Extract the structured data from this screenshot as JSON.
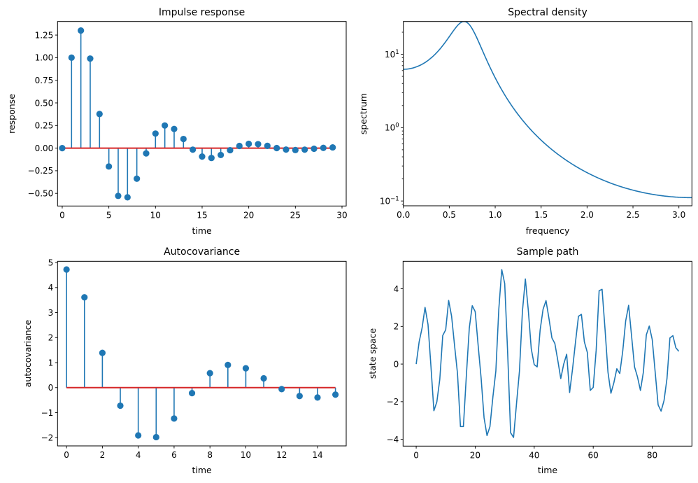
{
  "figure": {
    "background": "#ffffff",
    "series_color": "#1f77b4",
    "baseline_color": "#d62728"
  },
  "chart_data": [
    {
      "id": "impulse",
      "type": "stem",
      "title": "Impulse response",
      "xlabel": "time",
      "ylabel": "response",
      "xlim": [
        -0.5,
        30.45
      ],
      "ylim": [
        -0.64,
        1.4
      ],
      "xticks": [
        0,
        5,
        10,
        15,
        20,
        25,
        30
      ],
      "xtick_labels": [
        "0",
        "5",
        "10",
        "15",
        "20",
        "25",
        "30"
      ],
      "yticks": [
        -0.5,
        -0.25,
        0.0,
        0.25,
        0.5,
        0.75,
        1.0,
        1.25
      ],
      "ytick_labels": [
        "−0.50",
        "−0.25",
        "0.00",
        "0.25",
        "0.50",
        "0.75",
        "1.00",
        "1.25"
      ],
      "x": [
        0,
        1,
        2,
        3,
        4,
        5,
        6,
        7,
        8,
        9,
        10,
        11,
        12,
        13,
        14,
        15,
        16,
        17,
        18,
        19,
        20,
        21,
        22,
        23,
        24,
        25,
        26,
        27,
        28,
        29
      ],
      "values": [
        0.0,
        1.0,
        1.3,
        0.99,
        0.377,
        -0.203,
        -0.528,
        -0.544,
        -0.338,
        -0.058,
        0.161,
        0.25,
        0.212,
        0.101,
        -0.017,
        -0.093,
        -0.109,
        -0.076,
        -0.023,
        0.024,
        0.047,
        0.044,
        0.025,
        0.001,
        -0.016,
        -0.021,
        -0.017,
        -0.007,
        0.003,
        0.008
      ],
      "baseline": 0,
      "grid": false
    },
    {
      "id": "spectral",
      "type": "line",
      "title": "Spectral density",
      "xlabel": "frequency",
      "ylabel": "spectrum",
      "yscale": "log",
      "xlim": [
        0,
        3.1416
      ],
      "ylim": [
        0.086,
        28.0
      ],
      "xticks": [
        0,
        0.5,
        1.0,
        1.5,
        2.0,
        2.5,
        3.0
      ],
      "xtick_labels": [
        "0.0",
        "0.5",
        "1.0",
        "1.5",
        "2.0",
        "2.5",
        "3.0"
      ],
      "yticks": [
        0.1,
        1,
        10
      ],
      "ytick_labels": [
        {
          "base": "10",
          "exp": "−1"
        },
        {
          "base": "10",
          "exp": "0"
        },
        {
          "base": "10",
          "exp": "1"
        }
      ],
      "ar_coefficients": [
        1.3,
        -0.7
      ],
      "sigma": 1.0,
      "samples": {
        "x": [
          0.0,
          0.2,
          0.4,
          0.5,
          0.6,
          0.66,
          0.7,
          0.8,
          0.9,
          1.0,
          1.2,
          1.5,
          2.0,
          2.5,
          3.1416
        ],
        "y": [
          6.25,
          7.2,
          11.5,
          16.3,
          25.0,
          27.9,
          26.5,
          14.5,
          7.4,
          4.2,
          1.75,
          0.62,
          0.24,
          0.14,
          0.111
        ]
      },
      "grid": false
    },
    {
      "id": "autocov",
      "type": "stem",
      "title": "Autocovariance",
      "xlabel": "time",
      "ylabel": "autocovariance",
      "xlim": [
        -0.5,
        15.6
      ],
      "ylim": [
        -2.33,
        5.05
      ],
      "xticks": [
        0,
        2,
        4,
        6,
        8,
        10,
        12,
        14
      ],
      "xtick_labels": [
        "0",
        "2",
        "4",
        "6",
        "8",
        "10",
        "12",
        "14"
      ],
      "yticks": [
        -2,
        -1,
        0,
        1,
        2,
        3,
        4,
        5
      ],
      "ytick_labels": [
        "−2",
        "−1",
        "0",
        "1",
        "2",
        "3",
        "4",
        "5"
      ],
      "x": [
        0,
        1,
        2,
        3,
        4,
        5,
        6,
        7,
        8,
        9,
        10,
        11,
        12,
        13,
        14,
        15
      ],
      "values": [
        4.722,
        3.611,
        1.389,
        -0.722,
        -1.911,
        -1.979,
        -1.235,
        -0.22,
        0.578,
        0.906,
        0.773,
        0.371,
        -0.059,
        -0.336,
        -0.396,
        -0.279
      ],
      "baseline": 0,
      "grid": false
    },
    {
      "id": "sample",
      "type": "line",
      "title": "Sample path",
      "xlabel": "time",
      "ylabel": "state space",
      "xlim": [
        -4.45,
        93.45
      ],
      "ylim": [
        -4.36,
        5.46
      ],
      "xticks": [
        0,
        20,
        40,
        60,
        80
      ],
      "xtick_labels": [
        "0",
        "20",
        "40",
        "60",
        "80"
      ],
      "yticks": [
        -4,
        -2,
        0,
        2,
        4
      ],
      "ytick_labels": [
        "−4",
        "−2",
        "0",
        "2",
        "4"
      ],
      "x": [
        0,
        1,
        2,
        3,
        4,
        5,
        6,
        7,
        8,
        9,
        10,
        11,
        12,
        13,
        14,
        15,
        16,
        17,
        18,
        19,
        20,
        21,
        22,
        23,
        24,
        25,
        26,
        27,
        28,
        29,
        30,
        31,
        32,
        33,
        34,
        35,
        36,
        37,
        38,
        39,
        40,
        41,
        42,
        43,
        44,
        45,
        46,
        47,
        48,
        49,
        50,
        51,
        52,
        53,
        54,
        55,
        56,
        57,
        58,
        59,
        60,
        61,
        62,
        63,
        64,
        65,
        66,
        67,
        68,
        69,
        70,
        71,
        72,
        73,
        74,
        75,
        76,
        77,
        78,
        79,
        80,
        81,
        82,
        83,
        84,
        85,
        86,
        87,
        88,
        89
      ],
      "values": [
        0.0,
        1.18,
        1.92,
        3.01,
        2.11,
        -0.12,
        -2.48,
        -2.01,
        -0.81,
        1.52,
        1.82,
        3.38,
        2.54,
        0.99,
        -0.5,
        -3.32,
        -3.32,
        -0.62,
        1.92,
        3.1,
        2.79,
        0.99,
        -0.74,
        -2.85,
        -3.8,
        -3.32,
        -1.74,
        -0.37,
        2.91,
        5.02,
        4.28,
        0.6,
        -3.65,
        -3.9,
        -2.11,
        -0.37,
        2.79,
        4.52,
        2.85,
        0.81,
        -0.03,
        -0.15,
        1.8,
        2.91,
        3.37,
        2.42,
        1.39,
        1.09,
        0.19,
        -0.77,
        0.0,
        0.52,
        -1.51,
        -0.25,
        1.18,
        2.54,
        2.64,
        1.18,
        0.62,
        -1.4,
        -1.24,
        0.74,
        3.9,
        3.97,
        1.86,
        -0.43,
        -1.55,
        -0.99,
        -0.25,
        -0.5,
        0.68,
        2.29,
        3.12,
        1.49,
        -0.15,
        -0.68,
        -1.4,
        -0.43,
        1.55,
        2.02,
        1.3,
        -0.43,
        -2.17,
        -2.5,
        -1.94,
        -0.77,
        1.39,
        1.51,
        0.87,
        0.68
      ],
      "grid": false
    }
  ]
}
